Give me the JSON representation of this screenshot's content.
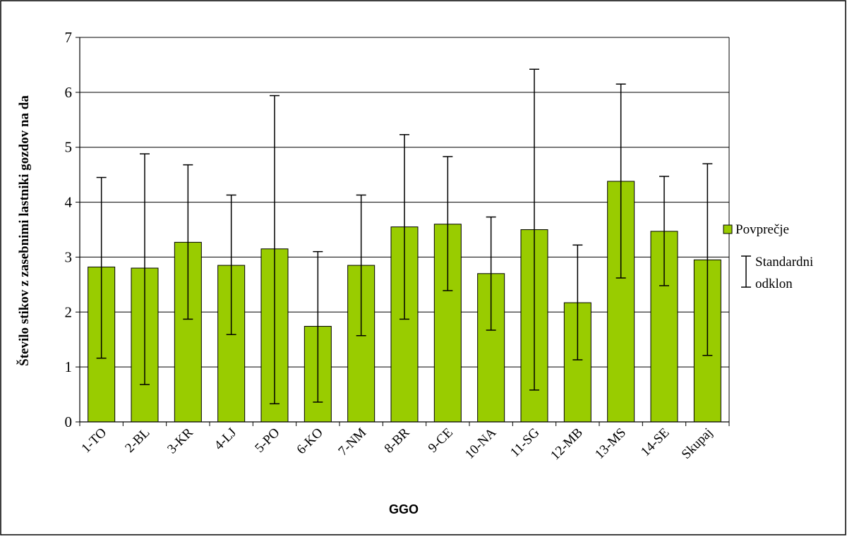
{
  "chart_data": {
    "type": "bar",
    "categories": [
      "1-TO",
      "2-BL",
      "3-KR",
      "4-LJ",
      "5-PO",
      "6-KO",
      "7-NM",
      "8-BR",
      "9-CE",
      "10-NA",
      "11-SG",
      "12-MB",
      "13-MS",
      "14-SE",
      "Skupaj"
    ],
    "series": [
      {
        "name": "Povprečje",
        "values": [
          2.82,
          2.8,
          3.27,
          2.85,
          3.15,
          1.74,
          2.85,
          3.55,
          3.6,
          2.7,
          3.5,
          2.17,
          4.38,
          3.47,
          2.95
        ],
        "error_low": [
          1.16,
          0.68,
          1.87,
          1.59,
          0.33,
          0.36,
          1.57,
          1.87,
          2.39,
          1.67,
          0.58,
          1.13,
          2.62,
          2.48,
          1.21
        ],
        "error_high": [
          4.45,
          4.88,
          4.68,
          4.13,
          5.94,
          3.1,
          4.13,
          5.23,
          4.83,
          3.73,
          6.42,
          3.22,
          6.15,
          4.47,
          4.7
        ]
      }
    ],
    "xlabel": "GGO",
    "ylabel": "Število stikov z zasebnimi lastniki gozdov na da",
    "ylim": [
      0,
      7
    ],
    "yticks": [
      "0",
      "1",
      "2",
      "3",
      "4",
      "5",
      "6",
      "7"
    ],
    "grid": true,
    "legend_position": "right",
    "legend": {
      "bar_label": "Povprečje",
      "error_label_line1": "Standardni",
      "error_label_line2": "odklon"
    },
    "colors": {
      "bar_fill": "#99CC00",
      "bar_stroke": "#000000",
      "grid": "#000000",
      "background": "#FFFFFF"
    }
  }
}
